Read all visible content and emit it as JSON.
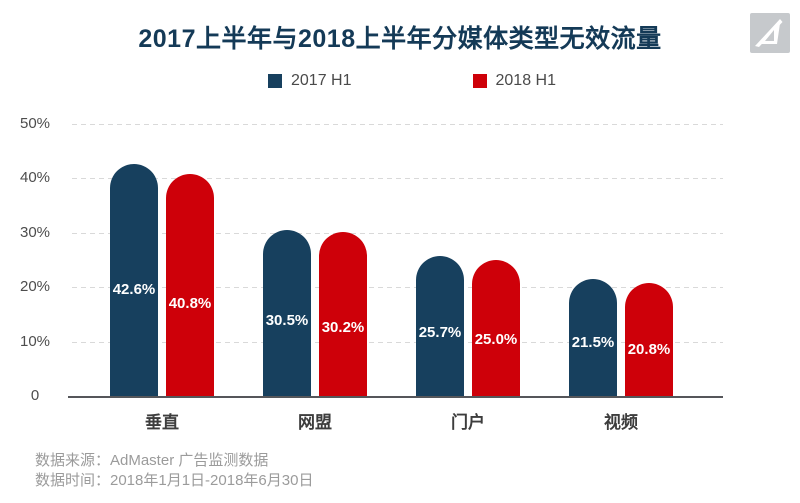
{
  "title": "2017上半年与2018上半年分媒体类型无效流量",
  "legend": [
    {
      "label": "2017 H1",
      "color": "#17405E"
    },
    {
      "label": "2018 H1",
      "color": "#CE0009"
    }
  ],
  "chart_data": {
    "type": "bar",
    "title": "2017上半年与2018上半年分媒体类型无效流量",
    "categories": [
      "垂直",
      "网盟",
      "门户",
      "视频"
    ],
    "series": [
      {
        "name": "2017 H1",
        "color": "#17405E",
        "values": [
          42.6,
          30.5,
          25.7,
          21.5
        ]
      },
      {
        "name": "2018 H1",
        "color": "#CE0009",
        "values": [
          40.8,
          30.2,
          25.0,
          20.8
        ]
      }
    ],
    "value_label_suffix": "%",
    "y_ticks": [
      "0",
      "10%",
      "20%",
      "30%",
      "40%",
      "50%"
    ],
    "ylim": [
      0,
      50
    ],
    "grid": "horizontal-dashed",
    "legend_position": "top-center"
  },
  "footer": {
    "source": "数据来源：AdMaster 广告监测数据",
    "period": "数据时间：2018年1月1日-2018年6月30日"
  },
  "colors": {
    "title": "#143A57",
    "gridline": "#D9D9D9",
    "axis_line": "#55565A",
    "logo_bg": "#C6C9CC"
  }
}
